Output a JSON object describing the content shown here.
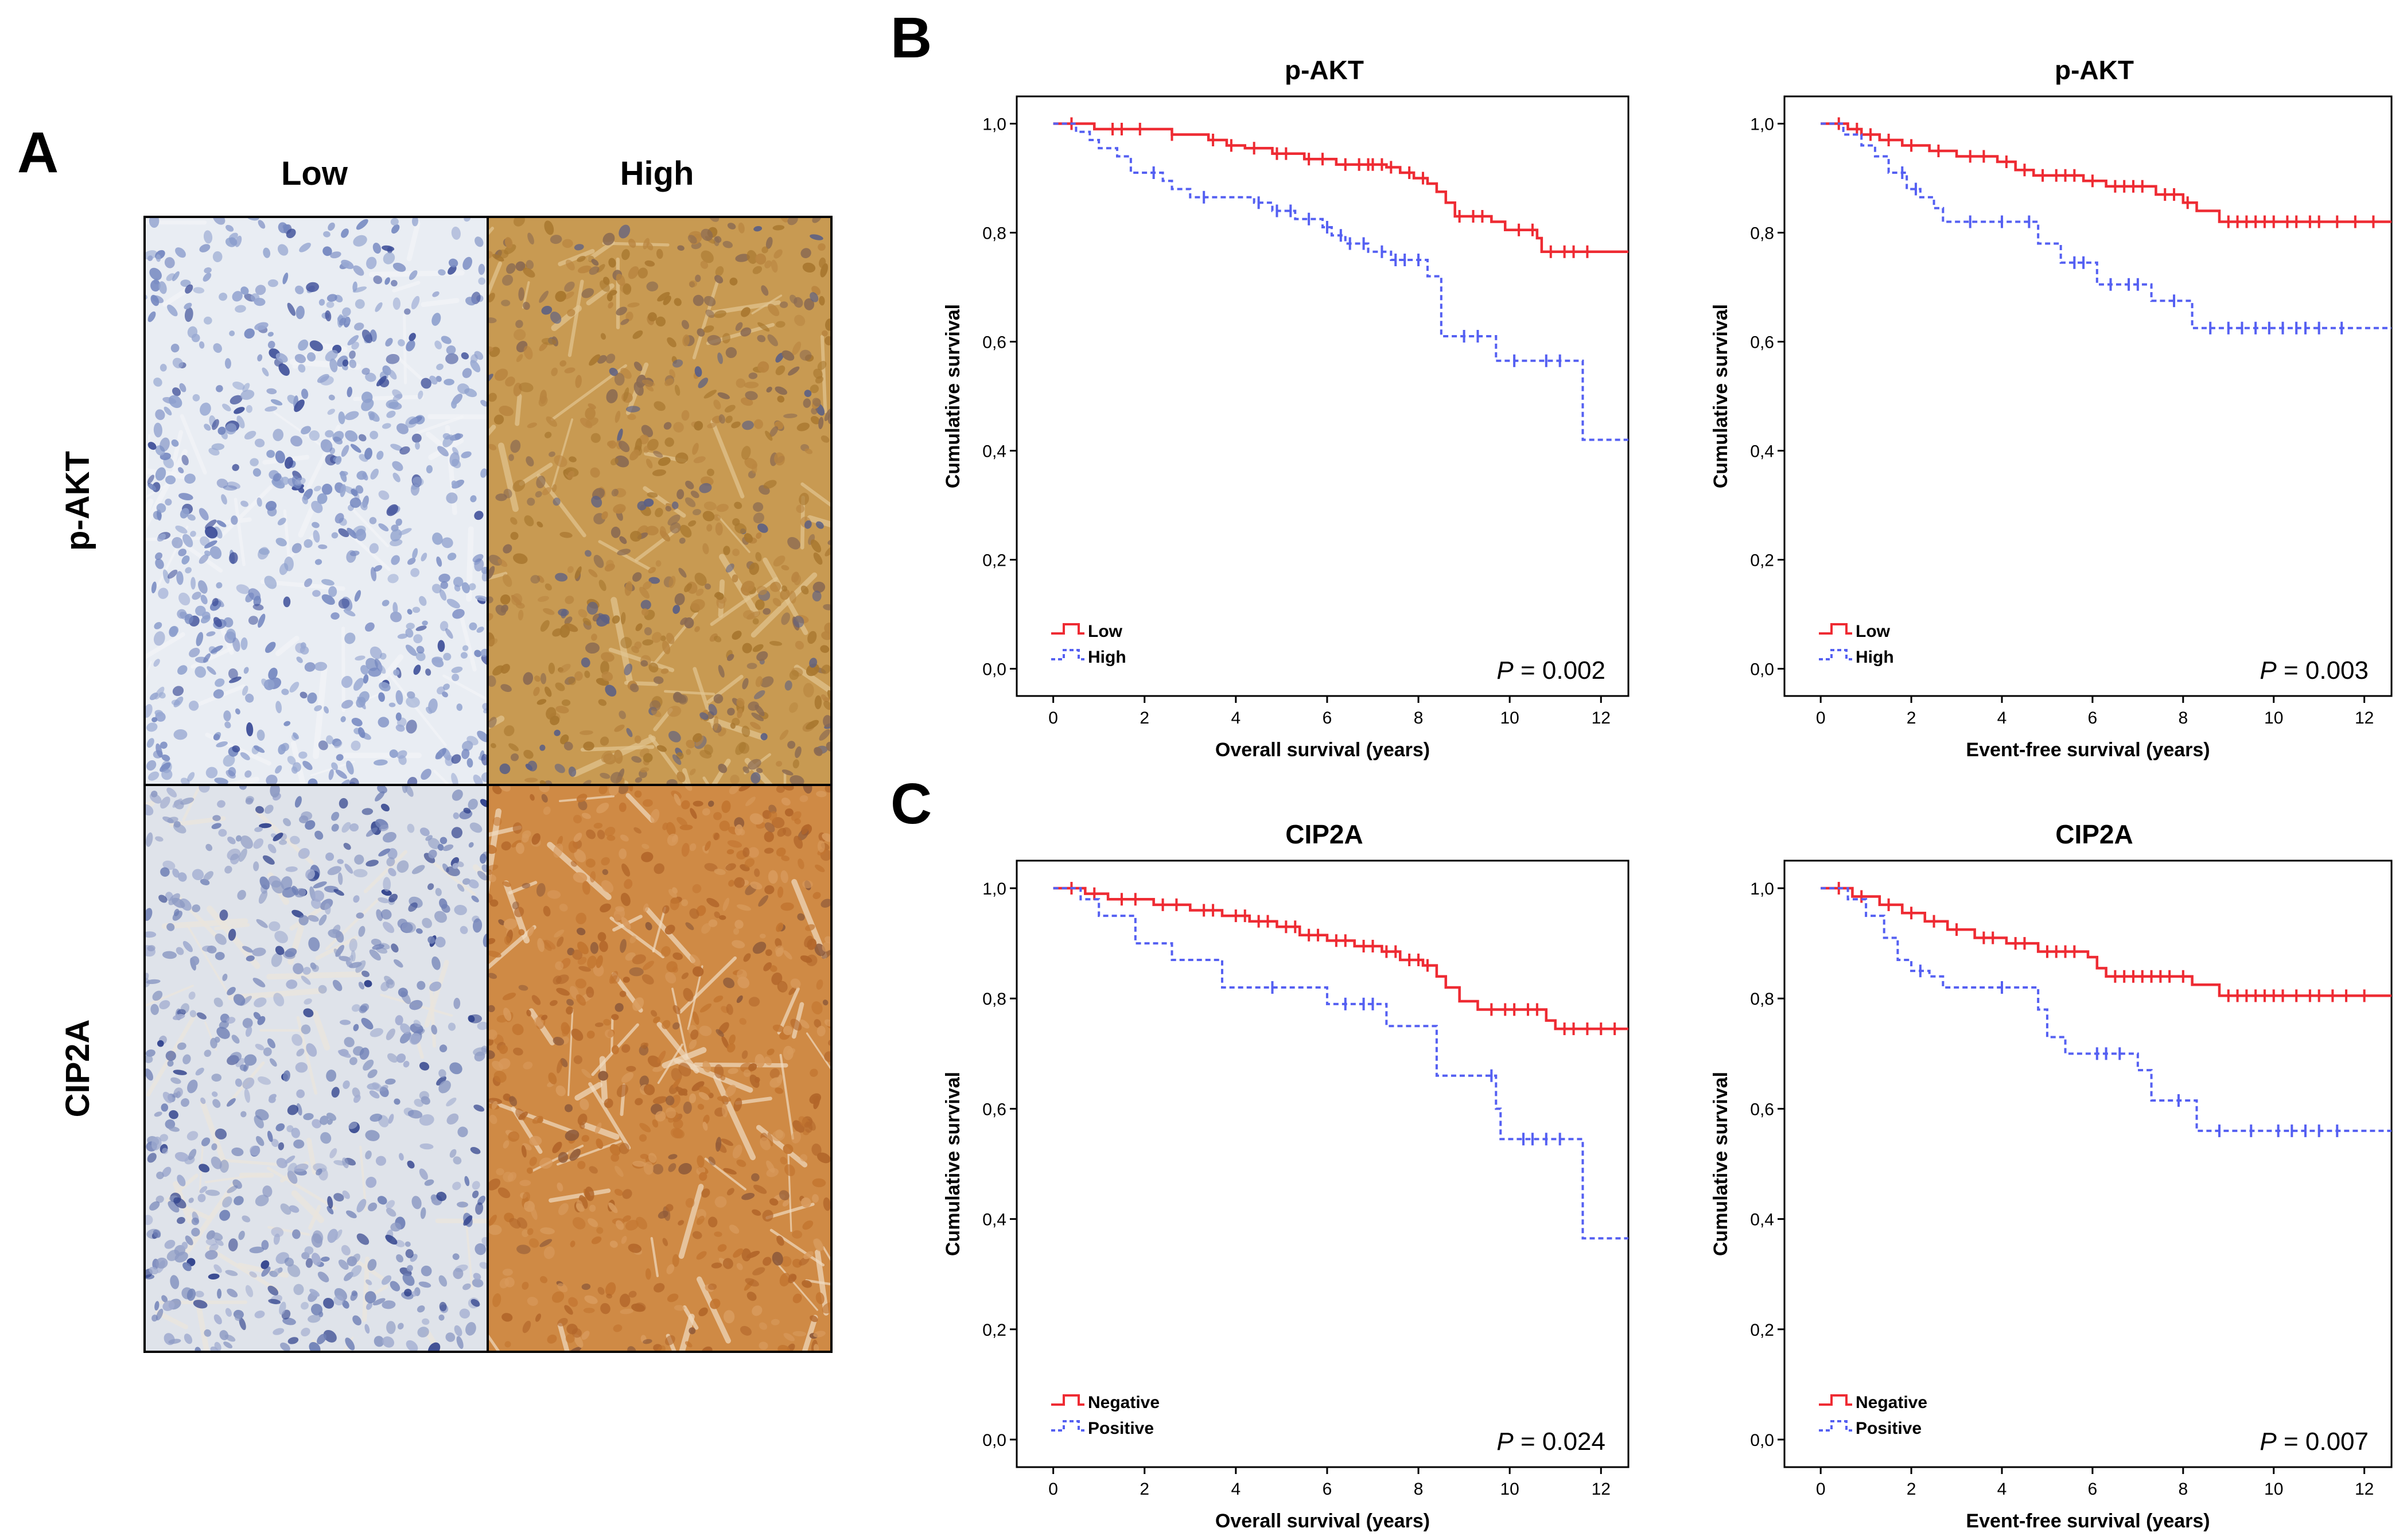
{
  "panel_a": {
    "letter": "A",
    "col_labels": [
      "Low",
      "High"
    ],
    "row_labels": [
      "p-AKT",
      "CIP2A"
    ]
  },
  "panel_b": {
    "letter": "B"
  },
  "panel_c": {
    "letter": "C"
  },
  "colors": {
    "low": "#ee2b33",
    "high": "#5560f2",
    "tissue_low_bg": "#e8ecf3",
    "tissue_high_bg": "#c59447",
    "tissue_cip2a_high_bg": "#cf8a45",
    "nucleus": "#4a63b0",
    "stain_brown": "#b57832"
  },
  "chart_data": [
    {
      "type": "line",
      "title": "p-AKT",
      "xlabel": "Overall survival (years)",
      "ylabel": "Cumulative survival",
      "xlim": [
        -0.8,
        12.6
      ],
      "ylim": [
        -0.05,
        1.05
      ],
      "x_ticks": [
        0,
        2,
        4,
        6,
        8,
        10,
        12
      ],
      "y_ticks": [
        "0,0",
        "0,2",
        "0,4",
        "0,6",
        "0,8",
        "1,0"
      ],
      "p_label": "P",
      "p_value": "= 0.002",
      "legend_position": "bottom-left",
      "series": [
        {
          "name": "Low",
          "style": "solid",
          "steps": [
            [
              0,
              1.0
            ],
            [
              0.6,
              1.0
            ],
            [
              0.9,
              0.99
            ],
            [
              2.6,
              0.98
            ],
            [
              3.4,
              0.97
            ],
            [
              3.8,
              0.96
            ],
            [
              4.2,
              0.955
            ],
            [
              4.8,
              0.945
            ],
            [
              5.5,
              0.935
            ],
            [
              6.2,
              0.925
            ],
            [
              7.3,
              0.92
            ],
            [
              7.6,
              0.91
            ],
            [
              7.9,
              0.9
            ],
            [
              8.2,
              0.89
            ],
            [
              8.4,
              0.875
            ],
            [
              8.6,
              0.855
            ],
            [
              8.8,
              0.83
            ],
            [
              9.6,
              0.82
            ],
            [
              9.9,
              0.805
            ],
            [
              10.6,
              0.79
            ],
            [
              10.7,
              0.765
            ],
            [
              12.6,
              0.765
            ]
          ],
          "censored_x": [
            0.4,
            1.3,
            1.5,
            1.9,
            2.6,
            3.5,
            3.9,
            4.4,
            4.9,
            5.1,
            5.6,
            5.9,
            6.4,
            6.7,
            6.9,
            7.0,
            7.2,
            7.4,
            7.8,
            8.1,
            8.9,
            9.2,
            9.4,
            10.2,
            10.5,
            10.9,
            11.2,
            11.4,
            11.7
          ]
        },
        {
          "name": "High",
          "style": "dashed",
          "steps": [
            [
              0,
              1.0
            ],
            [
              0.5,
              0.985
            ],
            [
              0.8,
              0.97
            ],
            [
              1.0,
              0.955
            ],
            [
              1.4,
              0.94
            ],
            [
              1.7,
              0.91
            ],
            [
              2.4,
              0.895
            ],
            [
              2.6,
              0.88
            ],
            [
              3.0,
              0.865
            ],
            [
              4.4,
              0.855
            ],
            [
              4.8,
              0.84
            ],
            [
              5.3,
              0.825
            ],
            [
              5.9,
              0.81
            ],
            [
              6.1,
              0.795
            ],
            [
              6.4,
              0.78
            ],
            [
              6.9,
              0.765
            ],
            [
              7.4,
              0.75
            ],
            [
              8.2,
              0.72
            ],
            [
              8.5,
              0.61
            ],
            [
              9.7,
              0.565
            ],
            [
              11.6,
              0.42
            ],
            [
              12.6,
              0.42
            ]
          ],
          "censored_x": [
            2.2,
            3.3,
            4.5,
            4.9,
            5.2,
            5.6,
            6.0,
            6.3,
            6.5,
            6.8,
            7.2,
            7.5,
            7.7,
            8.0,
            9.0,
            9.3,
            10.1,
            10.8,
            11.1
          ]
        }
      ]
    },
    {
      "type": "line",
      "title": "p-AKT",
      "xlabel": "Event-free survival (years)",
      "ylabel": "Cumulative survival",
      "xlim": [
        -0.8,
        12.6
      ],
      "ylim": [
        -0.05,
        1.05
      ],
      "x_ticks": [
        0,
        2,
        4,
        6,
        8,
        10,
        12
      ],
      "y_ticks": [
        "0,0",
        "0,2",
        "0,4",
        "0,6",
        "0,8",
        "1,0"
      ],
      "p_label": "P",
      "p_value": "= 0.003",
      "legend_position": "bottom-left",
      "series": [
        {
          "name": "Low",
          "style": "solid",
          "steps": [
            [
              0,
              1.0
            ],
            [
              0.6,
              0.99
            ],
            [
              0.9,
              0.98
            ],
            [
              1.3,
              0.97
            ],
            [
              1.8,
              0.96
            ],
            [
              2.4,
              0.95
            ],
            [
              3.0,
              0.94
            ],
            [
              3.9,
              0.93
            ],
            [
              4.3,
              0.915
            ],
            [
              4.7,
              0.905
            ],
            [
              5.8,
              0.895
            ],
            [
              6.3,
              0.885
            ],
            [
              7.4,
              0.87
            ],
            [
              8.0,
              0.855
            ],
            [
              8.3,
              0.84
            ],
            [
              8.8,
              0.82
            ],
            [
              12.6,
              0.82
            ]
          ],
          "censored_x": [
            0.4,
            0.8,
            1.1,
            1.5,
            2.0,
            2.6,
            3.3,
            3.6,
            4.1,
            4.5,
            4.9,
            5.2,
            5.4,
            5.6,
            6.0,
            6.5,
            6.7,
            6.9,
            7.1,
            7.6,
            7.8,
            8.1,
            9.0,
            9.2,
            9.4,
            9.6,
            9.8,
            10.0,
            10.3,
            10.5,
            10.8,
            11.0,
            11.4,
            11.8,
            12.2
          ]
        },
        {
          "name": "High",
          "style": "dashed",
          "steps": [
            [
              0,
              1.0
            ],
            [
              0.5,
              0.98
            ],
            [
              0.9,
              0.96
            ],
            [
              1.2,
              0.94
            ],
            [
              1.5,
              0.91
            ],
            [
              1.9,
              0.88
            ],
            [
              2.2,
              0.865
            ],
            [
              2.5,
              0.845
            ],
            [
              2.7,
              0.82
            ],
            [
              4.8,
              0.78
            ],
            [
              5.3,
              0.745
            ],
            [
              6.1,
              0.705
            ],
            [
              7.3,
              0.675
            ],
            [
              8.2,
              0.625
            ],
            [
              12.6,
              0.625
            ]
          ],
          "censored_x": [
            1.8,
            2.1,
            3.3,
            4.0,
            4.6,
            5.6,
            5.8,
            6.4,
            6.8,
            7.0,
            7.8,
            8.6,
            9.0,
            9.3,
            9.6,
            9.9,
            10.2,
            10.5,
            10.7,
            11.0,
            11.5
          ]
        }
      ]
    },
    {
      "type": "line",
      "title": "CIP2A",
      "xlabel": "Overall survival (years)",
      "ylabel": "Cumulative survival",
      "xlim": [
        -0.8,
        12.6
      ],
      "ylim": [
        -0.05,
        1.05
      ],
      "x_ticks": [
        0,
        2,
        4,
        6,
        8,
        10,
        12
      ],
      "y_ticks": [
        "0,0",
        "0,2",
        "0,4",
        "0,6",
        "0,8",
        "1,0"
      ],
      "p_label": "P",
      "p_value": "= 0.024",
      "legend_position": "bottom-left",
      "series": [
        {
          "name": "Negative",
          "style": "solid",
          "steps": [
            [
              0,
              1.0
            ],
            [
              0.7,
              0.99
            ],
            [
              1.2,
              0.98
            ],
            [
              2.2,
              0.97
            ],
            [
              3.0,
              0.96
            ],
            [
              3.7,
              0.95
            ],
            [
              4.3,
              0.94
            ],
            [
              4.9,
              0.93
            ],
            [
              5.4,
              0.915
            ],
            [
              6.0,
              0.905
            ],
            [
              6.6,
              0.895
            ],
            [
              7.2,
              0.885
            ],
            [
              7.6,
              0.87
            ],
            [
              8.1,
              0.86
            ],
            [
              8.4,
              0.84
            ],
            [
              8.6,
              0.82
            ],
            [
              8.9,
              0.795
            ],
            [
              9.3,
              0.78
            ],
            [
              10.8,
              0.76
            ],
            [
              11.0,
              0.745
            ],
            [
              12.6,
              0.745
            ]
          ],
          "censored_x": [
            0.4,
            0.9,
            1.5,
            1.8,
            2.4,
            2.7,
            3.3,
            3.5,
            4.0,
            4.2,
            4.5,
            4.7,
            5.1,
            5.3,
            5.6,
            5.8,
            6.2,
            6.4,
            6.8,
            7.0,
            7.3,
            7.5,
            7.8,
            8.0,
            8.2,
            9.6,
            9.9,
            10.1,
            10.4,
            10.6,
            11.2,
            11.4,
            11.7,
            12.0,
            12.3
          ]
        },
        {
          "name": "Positive",
          "style": "dashed",
          "steps": [
            [
              0,
              1.0
            ],
            [
              0.6,
              0.98
            ],
            [
              1.0,
              0.95
            ],
            [
              1.8,
              0.9
            ],
            [
              2.6,
              0.87
            ],
            [
              3.7,
              0.82
            ],
            [
              6.0,
              0.79
            ],
            [
              7.3,
              0.75
            ],
            [
              8.4,
              0.66
            ],
            [
              9.7,
              0.6
            ],
            [
              9.8,
              0.545
            ],
            [
              11.6,
              0.365
            ],
            [
              12.6,
              0.365
            ]
          ],
          "censored_x": [
            4.8,
            6.4,
            6.8,
            7.0,
            9.6,
            10.3,
            10.5,
            10.8,
            11.1
          ]
        }
      ]
    },
    {
      "type": "line",
      "title": "CIP2A",
      "xlabel": "Event-free survival (years)",
      "ylabel": "Cumulative survival",
      "xlim": [
        -0.8,
        12.6
      ],
      "ylim": [
        -0.05,
        1.05
      ],
      "x_ticks": [
        0,
        2,
        4,
        6,
        8,
        10,
        12
      ],
      "y_ticks": [
        "0,0",
        "0,2",
        "0,4",
        "0,6",
        "0,8",
        "1,0"
      ],
      "p_label": "P",
      "p_value": "= 0.007",
      "legend_position": "bottom-left",
      "series": [
        {
          "name": "Negative",
          "style": "solid",
          "steps": [
            [
              0,
              1.0
            ],
            [
              0.7,
              0.985
            ],
            [
              1.3,
              0.97
            ],
            [
              1.8,
              0.955
            ],
            [
              2.3,
              0.94
            ],
            [
              2.8,
              0.925
            ],
            [
              3.4,
              0.91
            ],
            [
              4.1,
              0.9
            ],
            [
              4.8,
              0.885
            ],
            [
              5.9,
              0.875
            ],
            [
              6.1,
              0.855
            ],
            [
              6.3,
              0.84
            ],
            [
              8.2,
              0.825
            ],
            [
              8.8,
              0.805
            ],
            [
              12.6,
              0.805
            ]
          ],
          "censored_x": [
            0.4,
            0.9,
            1.5,
            2.0,
            2.5,
            3.0,
            3.6,
            3.8,
            4.3,
            4.5,
            5.0,
            5.2,
            5.4,
            5.6,
            6.5,
            6.7,
            6.9,
            7.1,
            7.3,
            7.5,
            7.7,
            8.0,
            9.0,
            9.2,
            9.4,
            9.6,
            9.8,
            10.0,
            10.2,
            10.5,
            10.8,
            11.0,
            11.3,
            11.6,
            12.0
          ]
        },
        {
          "name": "Positive",
          "style": "dashed",
          "steps": [
            [
              0,
              1.0
            ],
            [
              0.6,
              0.98
            ],
            [
              1.0,
              0.95
            ],
            [
              1.4,
              0.91
            ],
            [
              1.7,
              0.87
            ],
            [
              2.0,
              0.85
            ],
            [
              2.4,
              0.84
            ],
            [
              2.7,
              0.82
            ],
            [
              4.8,
              0.78
            ],
            [
              5.0,
              0.73
            ],
            [
              5.4,
              0.7
            ],
            [
              7.0,
              0.67
            ],
            [
              7.3,
              0.615
            ],
            [
              8.3,
              0.56
            ],
            [
              12.6,
              0.56
            ]
          ],
          "censored_x": [
            2.2,
            4.0,
            6.1,
            6.3,
            6.6,
            7.9,
            8.8,
            9.5,
            10.1,
            10.4,
            10.7,
            11.0,
            11.4
          ]
        }
      ]
    }
  ]
}
